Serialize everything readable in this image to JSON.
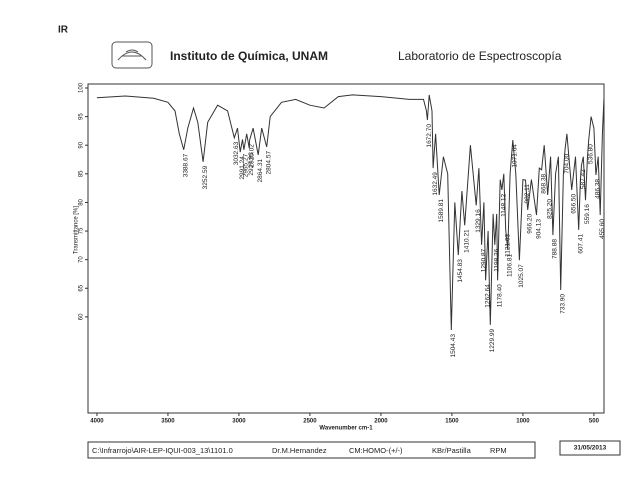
{
  "chart_data": {
    "type": "line",
    "mode_label": "IR",
    "institution": "Instituto de Química, UNAM",
    "laboratory": "Laboratorio de Espectroscopía",
    "ylabel": "Transmittance [%]",
    "xlabel": "Wavenumber cm-1",
    "xlim": [
      4063,
      429
    ],
    "ylim": [
      43.2,
      100.7
    ],
    "xticks": [
      4000,
      3500,
      3000,
      2500,
      2000,
      1500,
      1000,
      500
    ],
    "yticks": [
      100,
      95,
      90,
      85,
      80,
      75,
      70,
      65,
      60
    ],
    "color": "#333333",
    "x": [
      4000,
      3800,
      3600,
      3500,
      3450,
      3420,
      3388.67,
      3360,
      3320,
      3290,
      3252.59,
      3220,
      3150,
      3080,
      3032.63,
      3010,
      2991.24,
      2975,
      2965.27,
      2945,
      2927.93,
      2925.02,
      2900,
      2864.31,
      2840,
      2804.57,
      2780,
      2700,
      2600,
      2500,
      2400,
      2300,
      2200,
      2000,
      1800,
      1700,
      1680,
      1672.7,
      1660,
      1640,
      1632.49,
      1615,
      1589.81,
      1560,
      1530,
      1504.43,
      1480,
      1454.83,
      1430,
      1410.21,
      1370,
      1329.16,
      1310,
      1290.87,
      1275,
      1262.64,
      1245,
      1229.99,
      1210,
      1198.26,
      1185,
      1178.4,
      1160,
      1148.12,
      1135,
      1121.63,
      1106.81,
      1090,
      1071.64,
      1050,
      1025.07,
      1000,
      982.11,
      966.2,
      940,
      904.13,
      885,
      868.38,
      850,
      825.2,
      805,
      788.88,
      770,
      750,
      733.9,
      715,
      704,
      690,
      656.5,
      630,
      607.41,
      595,
      587.42,
      575,
      559.16,
      545,
      536.8,
      520,
      500,
      486.38,
      470,
      455.6,
      440,
      430
    ],
    "y": [
      98.3,
      98.6,
      98.2,
      97.5,
      96,
      92,
      89.2,
      93,
      96.5,
      94,
      87.1,
      94,
      97,
      96,
      91.3,
      93,
      88.8,
      91,
      89.2,
      92,
      89.5,
      90.9,
      93,
      88.3,
      93,
      89.7,
      95,
      97.5,
      98,
      97,
      96.5,
      98.5,
      98.8,
      98.5,
      98,
      98,
      96,
      94.4,
      98.8,
      96,
      86,
      92,
      81.3,
      88,
      85,
      57.7,
      80,
      70.8,
      82,
      76,
      90,
      79.5,
      86,
      72.6,
      80,
      66.4,
      75,
      58.6,
      78,
      72.6,
      78,
      66.4,
      84,
      82.2,
      85,
      75.2,
      71.7,
      85,
      90.9,
      85,
      69.9,
      84,
      83.9,
      78.7,
      84,
      77.8,
      86,
      85.7,
      90,
      81.3,
      88,
      74.3,
      85,
      88,
      64.7,
      85,
      89.2,
      92,
      82.2,
      88,
      75.2,
      84,
      86.5,
      88,
      80.4,
      88,
      90.9,
      95,
      93,
      84.8,
      88,
      77.8,
      92,
      98
    ],
    "peaks": [
      {
        "x": 3388.67,
        "label": "3388.67"
      },
      {
        "x": 3252.59,
        "label": "3252.59"
      },
      {
        "x": 3032.63,
        "label": "3032.63"
      },
      {
        "x": 2991.24,
        "label": "2991.24"
      },
      {
        "x": 2965.27,
        "label": "2965.27"
      },
      {
        "x": 2927.93,
        "label": "2927.93"
      },
      {
        "x": 2925.02,
        "label": "2925.02"
      },
      {
        "x": 2864.31,
        "label": "2864.31"
      },
      {
        "x": 2804.57,
        "label": "2804.57"
      },
      {
        "x": 1672.7,
        "label": "1672.70"
      },
      {
        "x": 1632.49,
        "label": "1632.49"
      },
      {
        "x": 1589.81,
        "label": "1589.81"
      },
      {
        "x": 1504.43,
        "label": "1504.43"
      },
      {
        "x": 1454.83,
        "label": "1454.83"
      },
      {
        "x": 1410.21,
        "label": "1410.21"
      },
      {
        "x": 1329.16,
        "label": "1329.16"
      },
      {
        "x": 1290.87,
        "label": "1290.87"
      },
      {
        "x": 1262.64,
        "label": "1262.64"
      },
      {
        "x": 1229.99,
        "label": "1229.99"
      },
      {
        "x": 1198.26,
        "label": "1198.26"
      },
      {
        "x": 1178.4,
        "label": "1178.40"
      },
      {
        "x": 1148.12,
        "label": "1148.12"
      },
      {
        "x": 1121.63,
        "label": "1121.63"
      },
      {
        "x": 1106.81,
        "label": "1106.81"
      },
      {
        "x": 1071.64,
        "label": "1071.64"
      },
      {
        "x": 1025.07,
        "label": "1025.07"
      },
      {
        "x": 982.11,
        "label": "982.11"
      },
      {
        "x": 966.2,
        "label": "966.20"
      },
      {
        "x": 904.13,
        "label": "904.13"
      },
      {
        "x": 868.38,
        "label": "868.38"
      },
      {
        "x": 825.2,
        "label": "825.20"
      },
      {
        "x": 788.88,
        "label": "788.88"
      },
      {
        "x": 733.9,
        "label": "733.90"
      },
      {
        "x": 704,
        "label": "704.00"
      },
      {
        "x": 656.5,
        "label": "656.50"
      },
      {
        "x": 607.41,
        "label": "607.41"
      },
      {
        "x": 587.42,
        "label": "587.42"
      },
      {
        "x": 559.16,
        "label": "559.16"
      },
      {
        "x": 536.8,
        "label": "536.80"
      },
      {
        "x": 486.38,
        "label": "486.38"
      },
      {
        "x": 455.6,
        "label": "455.60"
      }
    ],
    "footer": {
      "file": "C:\\Infrarrojo\\AIR-LEP-IQUI-003_13\\1101.0",
      "operator": "Dr.M.Hernandez",
      "sample": "CM:HOMO-(+/-)",
      "method": "KBr/Pastilla",
      "rpm": "RPM",
      "date": "31/05/2013"
    }
  }
}
